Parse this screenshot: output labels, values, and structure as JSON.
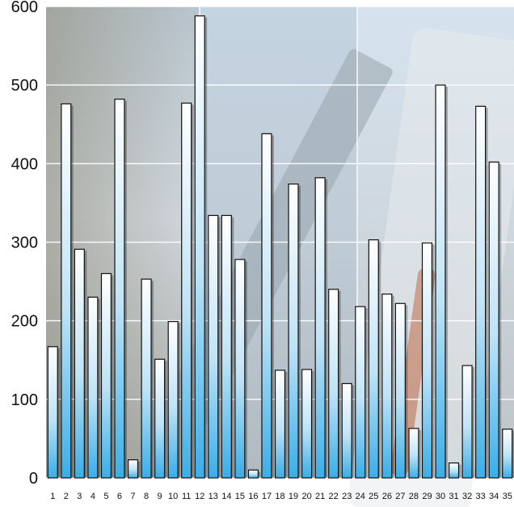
{
  "chart_data": {
    "type": "bar",
    "title": "",
    "xlabel": "",
    "ylabel": "",
    "ylim": [
      0,
      600
    ],
    "yticks": [
      "0",
      "100",
      "200",
      "300",
      "400",
      "500",
      "600"
    ],
    "grid": true,
    "categories": [
      "1",
      "2",
      "3",
      "4",
      "5",
      "6",
      "7",
      "8",
      "9",
      "10",
      "11",
      "12",
      "13",
      "14",
      "15",
      "16",
      "17",
      "18",
      "19",
      "20",
      "21",
      "22",
      "23",
      "24",
      "25",
      "26",
      "27",
      "28",
      "29",
      "30",
      "31",
      "32",
      "33",
      "34",
      "35"
    ],
    "values": [
      167,
      476,
      291,
      230,
      260,
      482,
      23,
      253,
      151,
      199,
      477,
      588,
      334,
      334,
      278,
      10,
      438,
      137,
      374,
      138,
      382,
      240,
      120,
      218,
      303,
      234,
      222,
      63,
      299,
      500,
      19,
      143,
      473,
      402,
      62
    ],
    "colors": {
      "bar_top": "#ffffff",
      "bar_bottom": "#3aaee8",
      "bar_edge": "#111111"
    }
  }
}
